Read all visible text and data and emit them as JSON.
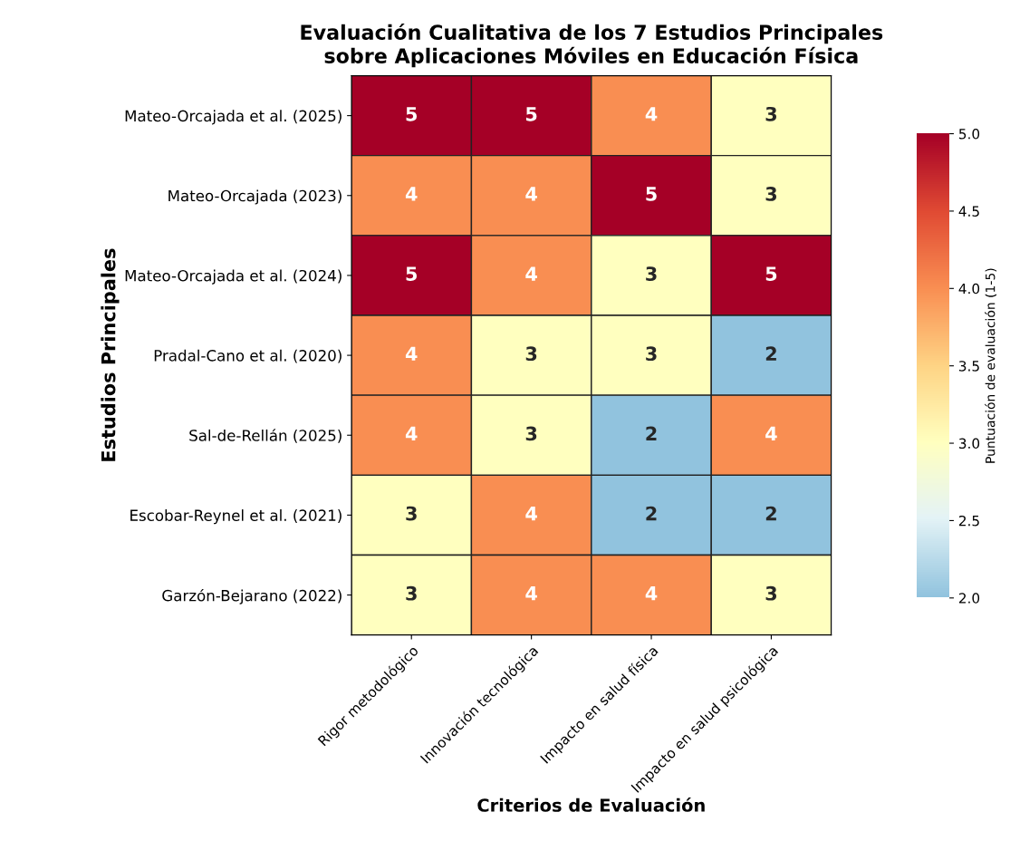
{
  "chart_data": {
    "type": "heatmap",
    "title": "Evaluación Cualitativa de los 7 Estudios Principales\nsobre Aplicaciones Móviles en Educación Física",
    "xlabel": "Criterios de Evaluación",
    "ylabel": "Estudios Principales",
    "clabel": "Puntuación de evaluación (1-5)",
    "categories": [
      "Rigor metodológico",
      "Innovación tecnológica",
      "Impacto en salud física",
      "Impacto en salud psicológica"
    ],
    "y_categories": [
      "Mateo-Orcajada et al. (2025)",
      "Mateo-Orcajada (2023)",
      "Mateo-Orcajada et al. (2024)",
      "Pradal-Cano et al. (2020)",
      "Sal-de-Rellán (2025)",
      "Escobar-Reynel et al. (2021)",
      "Garzón-Bejarano (2022)"
    ],
    "cells": [
      [
        5,
        5,
        4,
        3
      ],
      [
        4,
        4,
        5,
        3
      ],
      [
        5,
        4,
        3,
        5
      ],
      [
        4,
        3,
        3,
        2
      ],
      [
        4,
        3,
        2,
        4
      ],
      [
        3,
        4,
        2,
        2
      ],
      [
        3,
        4,
        4,
        3
      ]
    ],
    "data_labels": true,
    "clim": [
      2,
      5
    ],
    "cticks": [
      {
        "value": 2,
        "label": "2.0"
      },
      {
        "value": 2.5,
        "label": "2.5"
      },
      {
        "value": 3,
        "label": "3.0"
      },
      {
        "value": 3.5,
        "label": "3.5"
      },
      {
        "value": 4,
        "label": "4.0"
      },
      {
        "value": 4.5,
        "label": "4.5"
      },
      {
        "value": 5,
        "label": "5.0"
      }
    ]
  }
}
